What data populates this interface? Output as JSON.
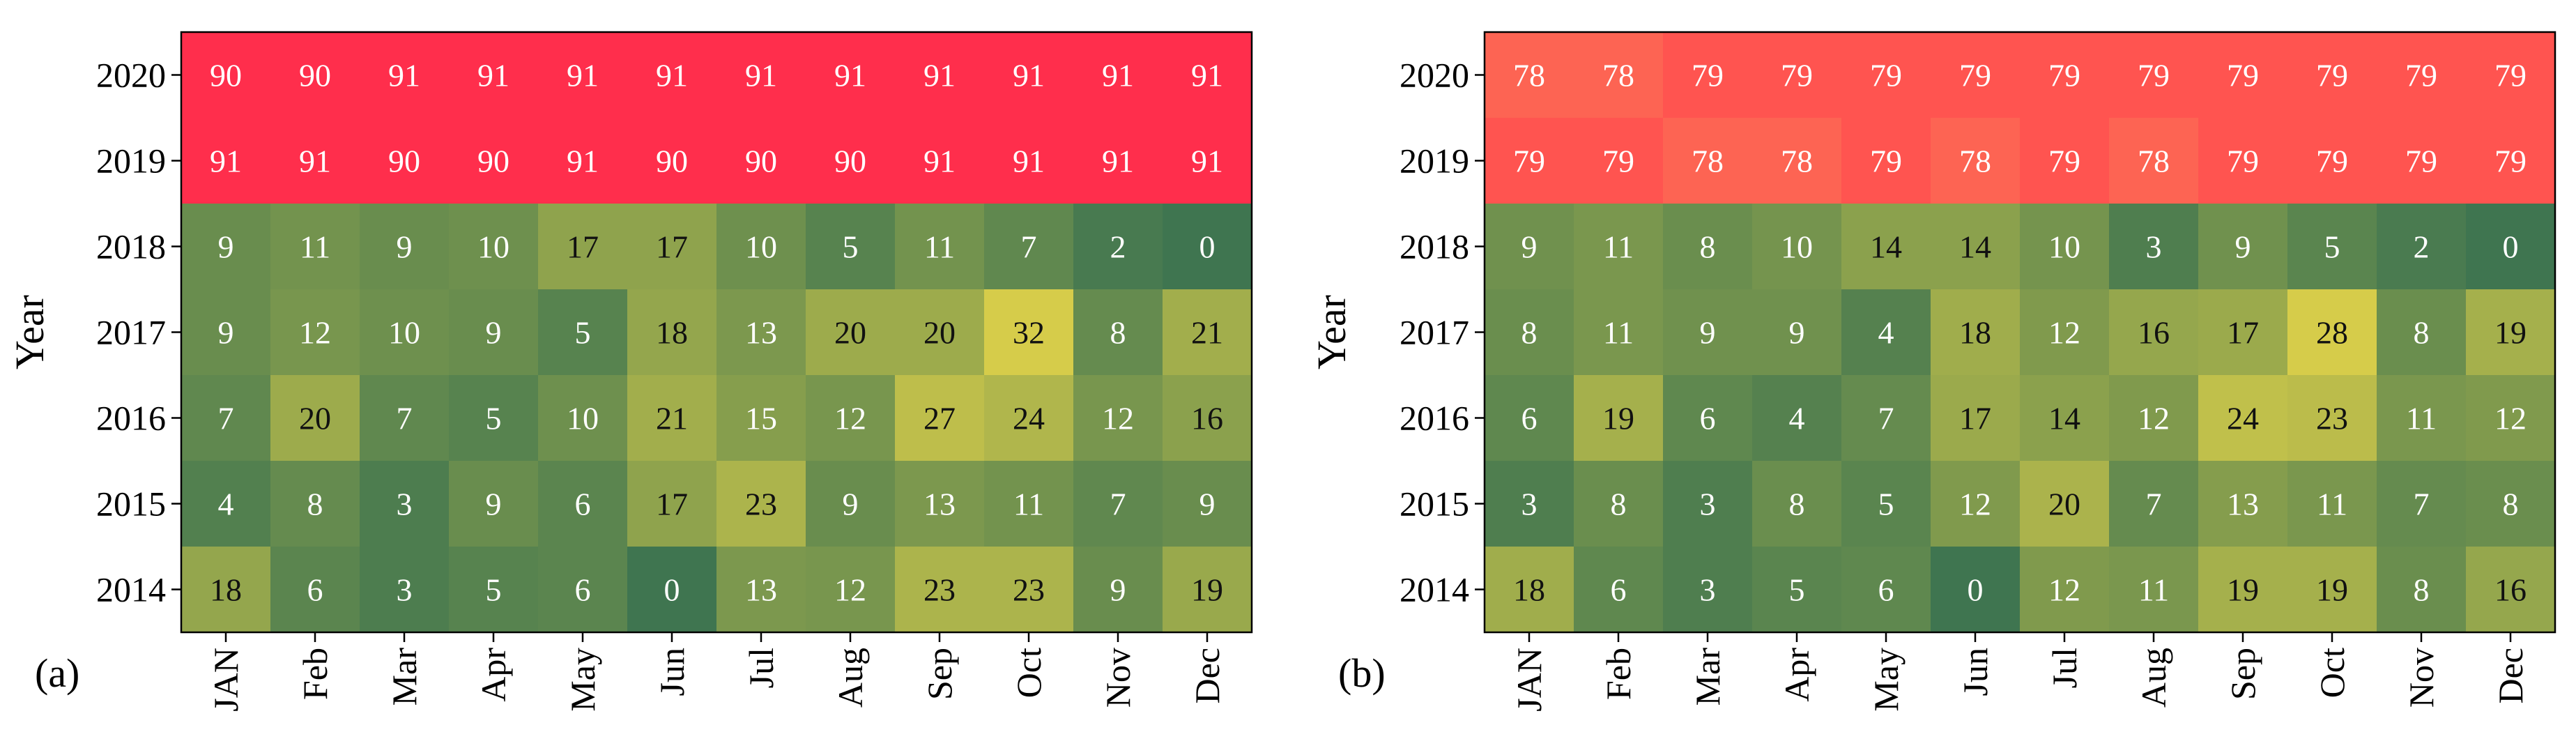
{
  "chart_data": [
    {
      "type": "heatmap",
      "panel_label": "(a)",
      "ylabel": "Year",
      "xlabel": "",
      "x": [
        "JAN",
        "Feb",
        "Mar",
        "Apr",
        "May",
        "Jun",
        "Jul",
        "Aug",
        "Sep",
        "Oct",
        "Nov",
        "Dec"
      ],
      "y": [
        "2020",
        "2019",
        "2018",
        "2017",
        "2016",
        "2015",
        "2014"
      ],
      "values": [
        [
          90,
          90,
          91,
          91,
          91,
          91,
          91,
          91,
          91,
          91,
          91,
          91
        ],
        [
          91,
          91,
          90,
          90,
          91,
          90,
          90,
          90,
          91,
          91,
          91,
          91
        ],
        [
          9,
          11,
          9,
          10,
          17,
          17,
          10,
          5,
          11,
          7,
          2,
          0
        ],
        [
          9,
          12,
          10,
          9,
          5,
          18,
          13,
          20,
          20,
          32,
          8,
          21
        ],
        [
          7,
          20,
          7,
          5,
          10,
          21,
          15,
          12,
          27,
          24,
          12,
          16
        ],
        [
          4,
          8,
          3,
          9,
          6,
          17,
          23,
          9,
          13,
          11,
          7,
          9
        ],
        [
          18,
          6,
          3,
          5,
          6,
          0,
          13,
          12,
          23,
          23,
          9,
          19
        ]
      ]
    },
    {
      "type": "heatmap",
      "panel_label": "(b)",
      "ylabel": "Year",
      "xlabel": "",
      "x": [
        "JAN",
        "Feb",
        "Mar",
        "Apr",
        "May",
        "Jun",
        "Jul",
        "Aug",
        "Sep",
        "Oct",
        "Nov",
        "Dec"
      ],
      "y": [
        "2020",
        "2019",
        "2018",
        "2017",
        "2016",
        "2015",
        "2014"
      ],
      "values": [
        [
          78,
          78,
          79,
          79,
          79,
          79,
          79,
          79,
          79,
          79,
          79,
          79
        ],
        [
          79,
          79,
          78,
          78,
          79,
          78,
          79,
          78,
          79,
          79,
          79,
          79
        ],
        [
          9,
          11,
          8,
          10,
          14,
          14,
          10,
          3,
          9,
          5,
          2,
          0
        ],
        [
          8,
          11,
          9,
          9,
          4,
          18,
          12,
          16,
          17,
          28,
          8,
          19
        ],
        [
          6,
          19,
          6,
          4,
          7,
          17,
          14,
          12,
          24,
          23,
          11,
          12
        ],
        [
          3,
          8,
          3,
          8,
          5,
          12,
          20,
          7,
          13,
          11,
          7,
          8
        ],
        [
          18,
          6,
          3,
          5,
          6,
          0,
          12,
          11,
          19,
          19,
          8,
          16
        ]
      ]
    }
  ],
  "colors": {
    "low": "#3f7550",
    "mid": "#d6cc4a",
    "high_a": "#ff2e4c",
    "high_b_79": "#ff5450",
    "high_b_78": "#fd6453",
    "dark_text": "#111111",
    "light_text": "#ffffff"
  }
}
